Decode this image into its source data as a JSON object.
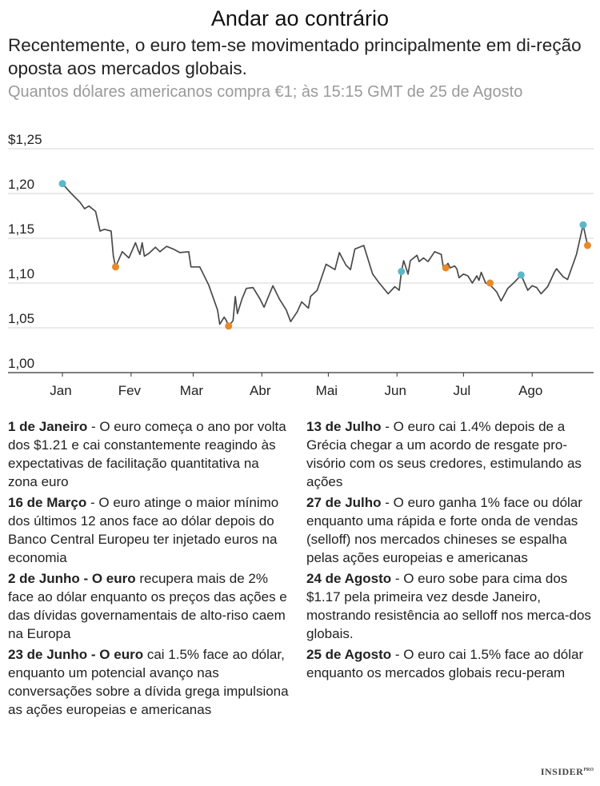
{
  "title": "Andar ao contrário",
  "subtitle": "Recentemente, o euro tem-se movimentado principalmente em di-reção oposta aos mercados globais.",
  "note": "Quantos dólares americanos compra €1; às 15:15 GMT de 25 de Agosto",
  "logo": {
    "main": "INSIDER",
    "sup": "PRO"
  },
  "colors": {
    "line": "#4a4a4a",
    "rise": "#5bb8c9",
    "fall": "#e8892b",
    "grid": "#d6d6d6",
    "axis": "#333333"
  },
  "chart_data": {
    "type": "line",
    "title": "",
    "xlabel": "",
    "ylabel": "",
    "ylim": [
      1.0,
      1.25
    ],
    "y_ticks": [
      {
        "value": 1.25,
        "label": "$1,25"
      },
      {
        "value": 1.2,
        "label": "1,20"
      },
      {
        "value": 1.15,
        "label": "1,15"
      },
      {
        "value": 1.1,
        "label": "1,10"
      },
      {
        "value": 1.05,
        "label": "1,05"
      },
      {
        "value": 1.0,
        "label": "1,00"
      }
    ],
    "x_ticks": [
      {
        "day": 1,
        "label": "Jan"
      },
      {
        "day": 32,
        "label": "Fev"
      },
      {
        "day": 60,
        "label": "Mar"
      },
      {
        "day": 91,
        "label": "Abr"
      },
      {
        "day": 121,
        "label": "Mai"
      },
      {
        "day": 152,
        "label": "Jun"
      },
      {
        "day": 182,
        "label": "Jul"
      },
      {
        "day": 213,
        "label": "Ago"
      }
    ],
    "xlim": [
      1,
      240
    ],
    "grid": true,
    "series": [
      {
        "points": [
          [
            1,
            1.211
          ],
          [
            5,
            1.2
          ],
          [
            9,
            1.19
          ],
          [
            11,
            1.183
          ],
          [
            13,
            1.186
          ],
          [
            16,
            1.18
          ],
          [
            18,
            1.158
          ],
          [
            20,
            1.16
          ],
          [
            23,
            1.158
          ],
          [
            24,
            1.13
          ],
          [
            25,
            1.118
          ],
          [
            28,
            1.135
          ],
          [
            31,
            1.128
          ],
          [
            34,
            1.145
          ],
          [
            35,
            1.138
          ],
          [
            36,
            1.132
          ],
          [
            37,
            1.145
          ],
          [
            38,
            1.13
          ],
          [
            40,
            1.133
          ],
          [
            43,
            1.14
          ],
          [
            45,
            1.135
          ],
          [
            48,
            1.141
          ],
          [
            51,
            1.138
          ],
          [
            54,
            1.134
          ],
          [
            58,
            1.135
          ],
          [
            59,
            1.118
          ],
          [
            63,
            1.118
          ],
          [
            67,
            1.098
          ],
          [
            71,
            1.07
          ],
          [
            72,
            1.054
          ],
          [
            74,
            1.062
          ],
          [
            75,
            1.058
          ],
          [
            76,
            1.052
          ],
          [
            78,
            1.058
          ],
          [
            79,
            1.085
          ],
          [
            80,
            1.066
          ],
          [
            82,
            1.082
          ],
          [
            84,
            1.094
          ],
          [
            87,
            1.095
          ],
          [
            90,
            1.083
          ],
          [
            92,
            1.073
          ],
          [
            96,
            1.097
          ],
          [
            99,
            1.082
          ],
          [
            102,
            1.07
          ],
          [
            104,
            1.057
          ],
          [
            107,
            1.068
          ],
          [
            109,
            1.079
          ],
          [
            112,
            1.072
          ],
          [
            113,
            1.085
          ],
          [
            116,
            1.092
          ],
          [
            120,
            1.121
          ],
          [
            124,
            1.115
          ],
          [
            126,
            1.134
          ],
          [
            129,
            1.12
          ],
          [
            131,
            1.115
          ],
          [
            133,
            1.138
          ],
          [
            137,
            1.142
          ],
          [
            141,
            1.11
          ],
          [
            144,
            1.1
          ],
          [
            148,
            1.088
          ],
          [
            151,
            1.096
          ],
          [
            153,
            1.092
          ],
          [
            154,
            1.113
          ],
          [
            155,
            1.125
          ],
          [
            157,
            1.11
          ],
          [
            158,
            1.125
          ],
          [
            161,
            1.131
          ],
          [
            162,
            1.124
          ],
          [
            164,
            1.128
          ],
          [
            166,
            1.124
          ],
          [
            169,
            1.135
          ],
          [
            172,
            1.132
          ],
          [
            173,
            1.116
          ],
          [
            175,
            1.122
          ],
          [
            176,
            1.117
          ],
          [
            178,
            1.119
          ],
          [
            179,
            1.116
          ],
          [
            180,
            1.106
          ],
          [
            182,
            1.11
          ],
          [
            184,
            1.108
          ],
          [
            186,
            1.1
          ],
          [
            188,
            1.108
          ],
          [
            189,
            1.103
          ],
          [
            190,
            1.112
          ],
          [
            192,
            1.1
          ],
          [
            194,
            1.098
          ],
          [
            197,
            1.09
          ],
          [
            199,
            1.08
          ],
          [
            202,
            1.094
          ],
          [
            205,
            1.101
          ],
          [
            208,
            1.109
          ],
          [
            211,
            1.092
          ],
          [
            213,
            1.097
          ],
          [
            215,
            1.095
          ],
          [
            217,
            1.088
          ],
          [
            220,
            1.096
          ],
          [
            223,
            1.112
          ],
          [
            224,
            1.116
          ],
          [
            227,
            1.107
          ],
          [
            229,
            1.104
          ],
          [
            233,
            1.132
          ],
          [
            236,
            1.165
          ],
          [
            238,
            1.142
          ]
        ]
      }
    ],
    "markers": [
      {
        "day": 1,
        "value": 1.211,
        "direction": "rise"
      },
      {
        "day": 25,
        "value": 1.118,
        "direction": "fall"
      },
      {
        "day": 76,
        "value": 1.052,
        "direction": "fall"
      },
      {
        "day": 154,
        "value": 1.113,
        "direction": "rise"
      },
      {
        "day": 174,
        "value": 1.117,
        "direction": "fall"
      },
      {
        "day": 194,
        "value": 1.1,
        "direction": "fall"
      },
      {
        "day": 208,
        "value": 1.109,
        "direction": "rise"
      },
      {
        "day": 236,
        "value": 1.165,
        "direction": "rise"
      },
      {
        "day": 238,
        "value": 1.142,
        "direction": "fall"
      }
    ]
  },
  "annotations": {
    "left": [
      {
        "date": "1 de Janeiro",
        "text": " - O euro começa o ano por volta dos $1.21 e cai constantemente reagindo às expectativas de facilitação quantitativa na zona euro"
      },
      {
        "date": "16 de Março",
        "text": " - O euro atinge o maior mínimo dos últimos 12 anos face ao dólar depois do Banco Central Europeu ter injetado euros na economia"
      },
      {
        "date": "2 de Junho - O euro",
        "text": " recupera mais de 2% face ao dólar enquanto os preços das ações e das dívidas governamentais de alto-riso caem na Europa"
      },
      {
        "date": "23 de Junho - O euro",
        "text": " cai 1.5% face ao dólar, enquanto um potencial avanço nas conversações sobre a dívida grega impulsiona as ações europeias e americanas"
      }
    ],
    "right": [
      {
        "date": "13 de Julho",
        "text": " - O euro cai 1.4% depois de a Grécia chegar a um acordo de resgate pro-visório com os seus credores, estimulando as ações"
      },
      {
        "date": "27 de Julho",
        "text": " - O euro ganha 1% face ou dólar enquanto uma rápida e forte onda de vendas (selloff) nos mercados chineses se espalha pelas ações europeias e americanas"
      },
      {
        "date": "24 de Agosto",
        "text": " - O euro sobe para cima dos $1.17 pela primeira vez desde Janeiro, mostrando resistência ao selloff nos merca-dos globais."
      },
      {
        "date": "25 de Agosto",
        "text": " - O euro cai 1.5% face ao dólar enquanto os mercados globais recu-peram"
      }
    ]
  }
}
